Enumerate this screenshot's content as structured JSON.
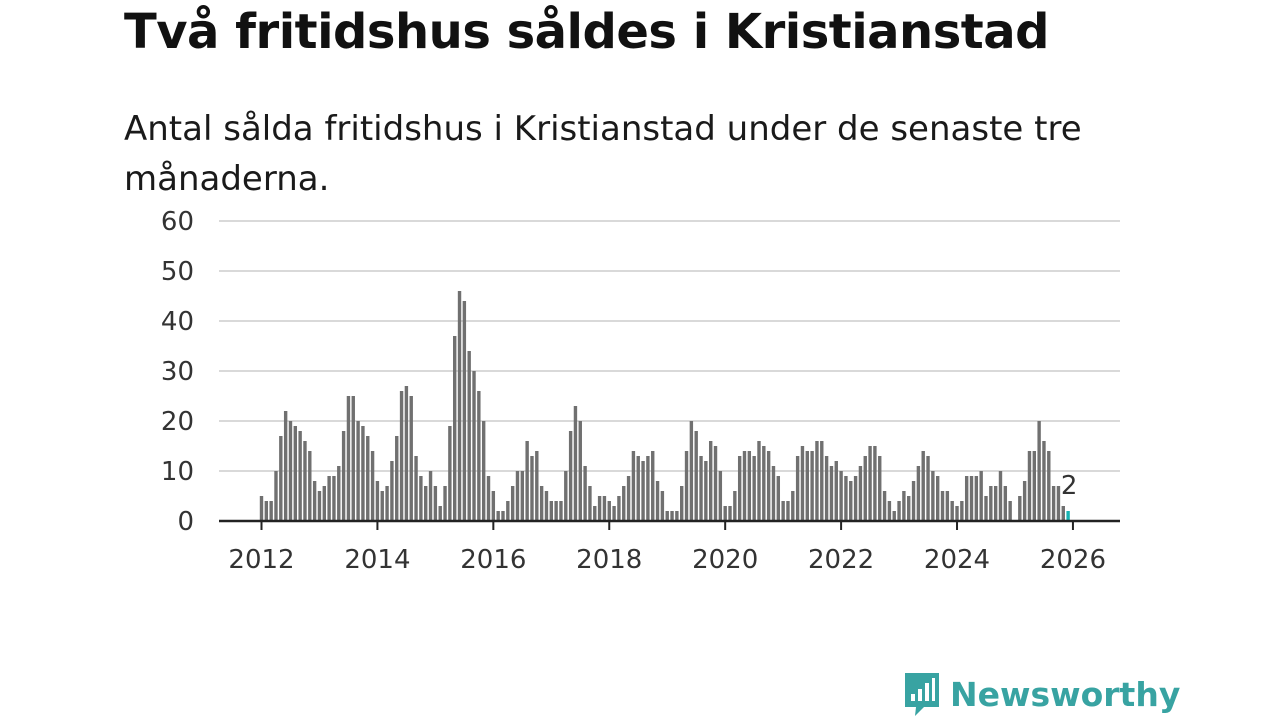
{
  "title": "Två fritidshus såldes i Kristianstad",
  "subtitle": "Antal sålda fritidshus i Kristianstad under de senaste tre månaderna.",
  "brand": {
    "name": "Newsworthy",
    "color": "#38a3a2"
  },
  "colors": {
    "bar": "#707070",
    "highlight": "#17b3b3",
    "grid": "#d9d9d9",
    "axis": "#222222"
  },
  "chart_data": {
    "type": "bar",
    "x_start": {
      "year": 2012,
      "month": 1
    },
    "values": [
      5,
      4,
      4,
      10,
      17,
      22,
      20,
      19,
      18,
      16,
      14,
      8,
      6,
      7,
      9,
      9,
      11,
      18,
      25,
      25,
      20,
      19,
      17,
      14,
      8,
      6,
      7,
      12,
      17,
      26,
      27,
      25,
      13,
      9,
      7,
      10,
      7,
      3,
      7,
      19,
      37,
      46,
      44,
      34,
      30,
      26,
      20,
      9,
      6,
      2,
      2,
      4,
      7,
      10,
      10,
      16,
      13,
      14,
      7,
      6,
      4,
      4,
      4,
      10,
      18,
      23,
      20,
      11,
      7,
      3,
      5,
      5,
      4,
      3,
      5,
      7,
      9,
      14,
      13,
      12,
      13,
      14,
      8,
      6,
      2,
      2,
      2,
      7,
      14,
      20,
      18,
      13,
      12,
      16,
      15,
      10,
      3,
      3,
      6,
      13,
      14,
      14,
      13,
      16,
      15,
      14,
      11,
      9,
      4,
      4,
      6,
      13,
      15,
      14,
      14,
      16,
      16,
      13,
      11,
      12,
      10,
      9,
      8,
      9,
      11,
      13,
      15,
      15,
      13,
      6,
      4,
      2,
      4,
      6,
      5,
      8,
      11,
      14,
      13,
      10,
      9,
      6,
      6,
      4,
      3,
      4,
      9,
      9,
      9,
      10,
      5,
      7,
      7,
      10,
      7,
      4,
      0,
      5,
      8,
      14,
      14,
      20,
      16,
      14,
      7,
      7,
      3,
      2
    ],
    "highlight_last": 1,
    "last_label": "2",
    "ylim": [
      0,
      60
    ],
    "yticks": [
      0,
      10,
      20,
      30,
      40,
      50,
      60
    ],
    "xticks": [
      "2012",
      "2014",
      "2016",
      "2018",
      "2020",
      "2022",
      "2024",
      "2026"
    ],
    "xlabel": "",
    "ylabel": "",
    "grid": true
  }
}
